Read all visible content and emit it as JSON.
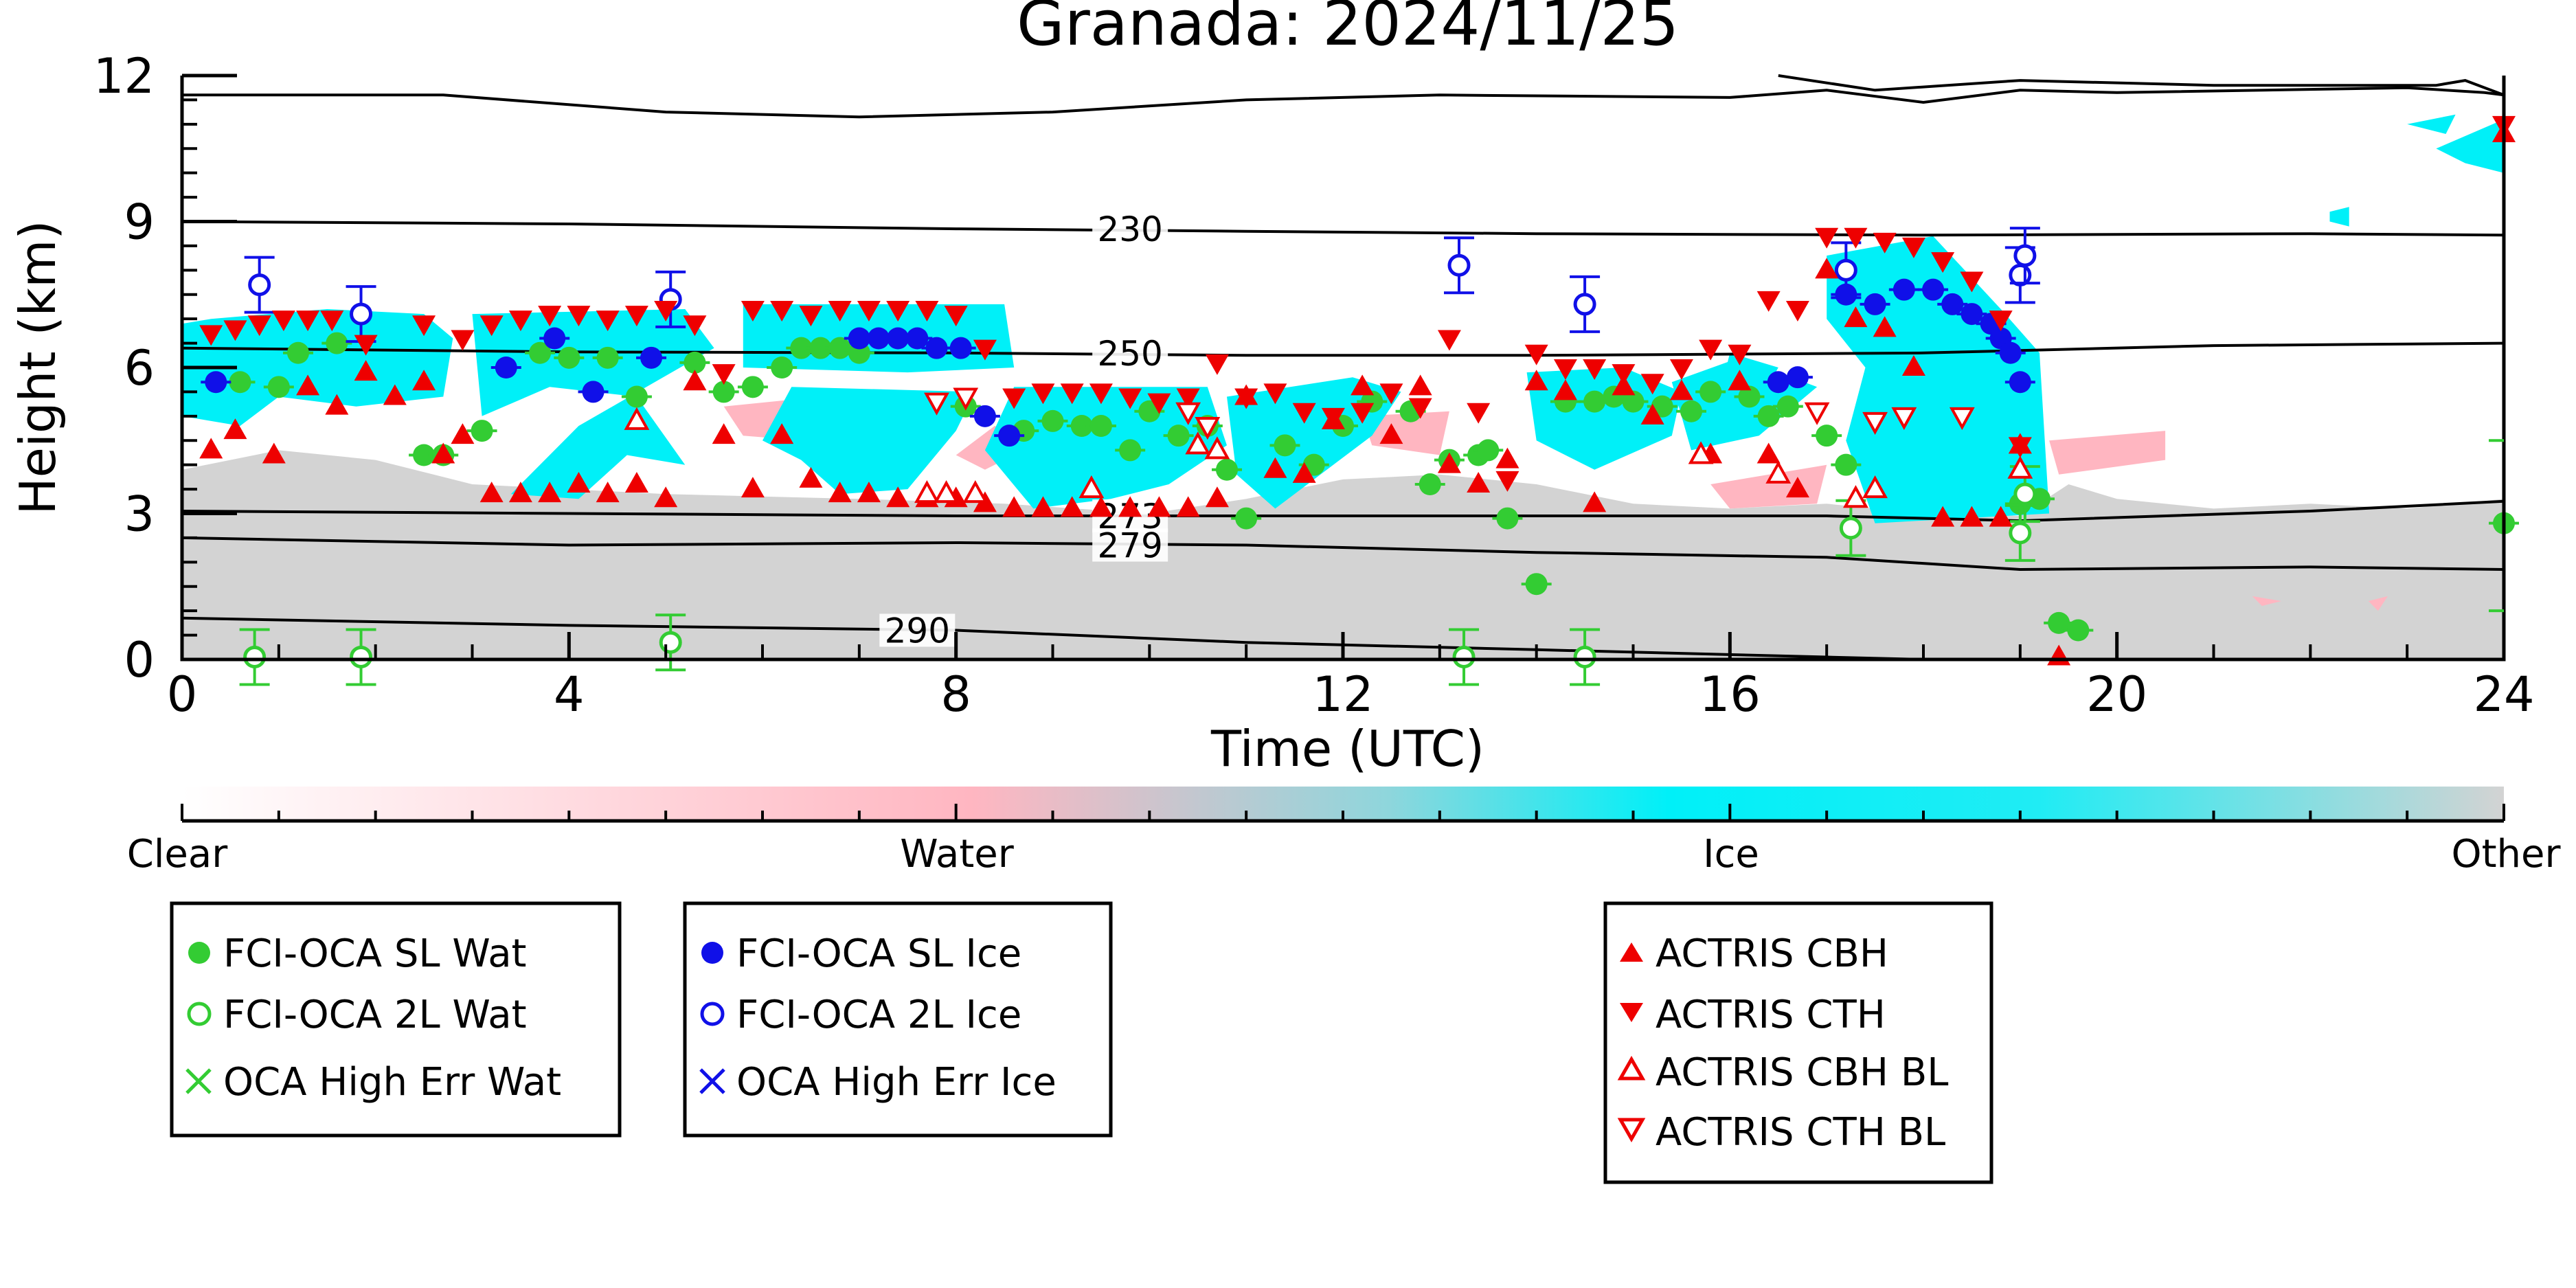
{
  "chart_data": {
    "type": "scatter",
    "title": "Granada: 2024/11/25",
    "xlabel": "Time (UTC)",
    "ylabel": "Height (km)",
    "xlim": [
      0,
      24
    ],
    "ylim": [
      0,
      12
    ],
    "x_ticks": [
      "0",
      "4",
      "8",
      "12",
      "16",
      "20",
      "24"
    ],
    "y_ticks": [
      "0",
      "3",
      "6",
      "9",
      "12"
    ],
    "grid": false,
    "colors": {
      "clear": "#ffffff",
      "water": "#ffb6c1",
      "ice": "#00f0f8",
      "other": "#d3d3d3",
      "oca_water": "#33cc33",
      "oca_ice": "#1010e8",
      "actris": "#ee0000"
    },
    "colorbar": {
      "labels": [
        "Clear",
        "Water",
        "Ice",
        "Other"
      ]
    },
    "isotherms": [
      {
        "label": "230",
        "points": [
          [
            0,
            9.0
          ],
          [
            4,
            8.95
          ],
          [
            8,
            8.85
          ],
          [
            11,
            8.8
          ],
          [
            14,
            8.75
          ],
          [
            18,
            8.72
          ],
          [
            22,
            8.75
          ],
          [
            24,
            8.72
          ]
        ]
      },
      {
        "label": "250",
        "points": [
          [
            0,
            6.4
          ],
          [
            4,
            6.32
          ],
          [
            8,
            6.3
          ],
          [
            11,
            6.25
          ],
          [
            14,
            6.25
          ],
          [
            18,
            6.3
          ],
          [
            21,
            6.45
          ],
          [
            24,
            6.5
          ]
        ]
      },
      {
        "label": "273",
        "points": [
          [
            0,
            3.05
          ],
          [
            4,
            3.0
          ],
          [
            8,
            2.95
          ],
          [
            11,
            2.95
          ],
          [
            14,
            2.95
          ],
          [
            17,
            2.95
          ],
          [
            19,
            2.85
          ],
          [
            22,
            3.05
          ],
          [
            24,
            3.25
          ]
        ]
      },
      {
        "label": "279",
        "points": [
          [
            0,
            2.5
          ],
          [
            4,
            2.35
          ],
          [
            8,
            2.4
          ],
          [
            11,
            2.35
          ],
          [
            14,
            2.2
          ],
          [
            17,
            2.1
          ],
          [
            19,
            1.85
          ],
          [
            22,
            1.9
          ],
          [
            24,
            1.85
          ]
        ]
      },
      {
        "label": "290",
        "points": [
          [
            0,
            0.85
          ],
          [
            4,
            0.7
          ],
          [
            8,
            0.6
          ],
          [
            11,
            0.35
          ],
          [
            14,
            0.2
          ],
          [
            17,
            0.05
          ],
          [
            18,
            0.0
          ]
        ]
      },
      {
        "label": "",
        "points": [
          [
            0,
            11.6
          ],
          [
            2.7,
            11.6
          ],
          [
            5,
            11.25
          ],
          [
            7,
            11.15
          ],
          [
            9,
            11.25
          ],
          [
            11,
            11.5
          ],
          [
            13,
            11.6
          ],
          [
            16,
            11.55
          ],
          [
            17,
            11.7
          ],
          [
            18,
            11.45
          ],
          [
            19,
            11.7
          ],
          [
            20,
            11.65
          ],
          [
            23,
            11.75
          ],
          [
            23.8,
            11.65
          ],
          [
            24,
            11.6
          ]
        ]
      },
      {
        "label": "",
        "points": [
          [
            16.5,
            12.0
          ],
          [
            17.5,
            11.7
          ],
          [
            19,
            11.9
          ],
          [
            21,
            11.8
          ],
          [
            23.3,
            11.8
          ],
          [
            23.6,
            11.9
          ],
          [
            24,
            11.6
          ]
        ]
      }
    ],
    "legend": {
      "water": [
        "FCI-OCA SL Wat",
        "FCI-OCA 2L Wat",
        "OCA High Err Wat"
      ],
      "ice": [
        "FCI-OCA SL Ice",
        "FCI-OCA 2L Ice",
        "OCA High Err Ice"
      ],
      "actris": [
        "ACTRIS CBH",
        "ACTRIS CTH",
        "ACTRIS CBH BL",
        "ACTRIS CTH BL"
      ]
    },
    "series": [
      {
        "name": "FCI-OCA SL Wat",
        "x": [
          0.6,
          1.0,
          1.2,
          1.6,
          2.5,
          2.7,
          3.1,
          3.7,
          4.0,
          4.4,
          4.7,
          5.3,
          5.6,
          5.9,
          6.2,
          6.4,
          6.6,
          6.8,
          7.0,
          8.1,
          8.7,
          9.0,
          9.3,
          9.5,
          9.8,
          10.0,
          10.3,
          10.6,
          10.8,
          11.0,
          11.4,
          11.7,
          12.0,
          12.3,
          12.7,
          12.9,
          13.1,
          13.4,
          13.5,
          13.7,
          14.0,
          14.3,
          14.6,
          14.8,
          15.0,
          15.3,
          15.6,
          15.8,
          16.2,
          16.4,
          16.6,
          17.0,
          17.2,
          19.0,
          19.2,
          19.4,
          19.6,
          24.0
        ],
        "y": [
          5.7,
          5.6,
          6.3,
          6.5,
          4.2,
          4.2,
          4.7,
          6.3,
          6.2,
          6.2,
          5.4,
          6.1,
          5.5,
          5.6,
          6.0,
          6.4,
          6.4,
          6.4,
          6.3,
          5.2,
          4.7,
          4.9,
          4.8,
          4.8,
          4.3,
          5.1,
          4.6,
          4.8,
          3.9,
          2.9,
          4.4,
          4.0,
          4.8,
          5.3,
          5.1,
          3.6,
          4.1,
          4.2,
          4.3,
          2.9,
          1.55,
          5.3,
          5.3,
          5.4,
          5.3,
          5.2,
          5.1,
          5.5,
          5.4,
          5.0,
          5.2,
          4.6,
          4.0,
          3.2,
          3.3,
          0.75,
          0.6,
          2.8
        ]
      },
      {
        "name": "FCI-OCA 2L Wat",
        "x": [
          0.75,
          1.85,
          5.05,
          13.25,
          14.5,
          17.25,
          19.0,
          19.05
        ],
        "y": [
          0.05,
          0.05,
          0.35,
          0.05,
          0.05,
          2.7,
          2.6,
          3.4
        ]
      },
      {
        "name": "FCI-OCA SL Ice",
        "x": [
          0.35,
          3.35,
          3.85,
          4.25,
          4.85,
          7.0,
          7.2,
          7.4,
          7.6,
          7.8,
          8.05,
          8.3,
          8.55,
          16.5,
          16.7,
          17.2,
          17.5,
          17.8,
          18.1,
          18.3,
          18.5,
          18.7,
          18.8,
          18.9,
          19.0
        ],
        "y": [
          5.7,
          6.0,
          6.6,
          5.5,
          6.2,
          6.6,
          6.6,
          6.6,
          6.6,
          6.4,
          6.4,
          5.0,
          4.6,
          5.7,
          5.8,
          7.5,
          7.3,
          7.6,
          7.6,
          7.3,
          7.1,
          6.9,
          6.6,
          6.3,
          5.7
        ]
      },
      {
        "name": "FCI-OCA 2L Ice",
        "x": [
          0.8,
          1.85,
          5.05,
          13.2,
          14.5,
          17.2,
          19.0,
          19.05
        ],
        "y": [
          7.7,
          7.1,
          7.4,
          8.1,
          7.3,
          8.0,
          7.9,
          8.3
        ]
      },
      {
        "name": "ACTRIS CBH",
        "x": [
          0.3,
          0.55,
          0.95,
          1.3,
          1.6,
          1.9,
          2.2,
          2.5,
          2.7,
          2.9,
          3.2,
          3.5,
          3.8,
          4.1,
          4.4,
          4.7,
          5.0,
          5.3,
          5.6,
          5.9,
          6.2,
          6.5,
          6.8,
          7.1,
          7.4,
          7.7,
          8.0,
          8.3,
          8.6,
          8.9,
          9.2,
          9.5,
          9.8,
          10.1,
          10.4,
          10.7,
          11.0,
          11.3,
          11.6,
          11.9,
          12.2,
          12.5,
          12.8,
          13.1,
          13.4,
          13.7,
          14.0,
          14.3,
          14.6,
          14.9,
          15.2,
          15.5,
          15.8,
          16.1,
          16.4,
          16.7,
          17.0,
          17.3,
          17.6,
          17.9,
          18.2,
          18.5,
          18.8,
          19.0,
          19.4,
          24.0
        ],
        "y": [
          4.3,
          4.7,
          4.2,
          5.6,
          5.2,
          5.9,
          5.4,
          5.7,
          4.2,
          4.6,
          3.4,
          3.4,
          3.4,
          3.6,
          3.4,
          3.6,
          3.3,
          5.7,
          4.6,
          3.5,
          4.6,
          3.7,
          3.4,
          3.4,
          3.3,
          3.3,
          3.3,
          3.2,
          3.1,
          3.1,
          3.1,
          3.1,
          3.1,
          3.1,
          3.1,
          3.3,
          5.4,
          3.9,
          3.8,
          4.9,
          5.6,
          4.6,
          5.6,
          4.0,
          3.6,
          4.1,
          5.7,
          5.5,
          3.2,
          5.6,
          5.0,
          5.5,
          4.2,
          5.7,
          4.2,
          3.5,
          8.0,
          7.0,
          6.8,
          6.0,
          2.9,
          2.9,
          2.9,
          4.4,
          0.05,
          10.8
        ]
      },
      {
        "name": "ACTRIS CTH",
        "x": [
          0.3,
          0.55,
          0.8,
          1.05,
          1.3,
          1.55,
          1.9,
          2.5,
          2.9,
          3.2,
          3.5,
          3.8,
          4.1,
          4.4,
          4.7,
          5.0,
          5.3,
          5.6,
          5.9,
          6.2,
          6.5,
          6.8,
          7.1,
          7.4,
          7.7,
          8.0,
          8.3,
          8.6,
          8.9,
          9.2,
          9.5,
          9.8,
          10.1,
          10.4,
          10.7,
          11.0,
          11.3,
          11.6,
          11.9,
          12.2,
          12.5,
          12.8,
          13.1,
          13.4,
          13.7,
          14.0,
          14.3,
          14.6,
          14.9,
          15.2,
          15.5,
          15.8,
          16.1,
          16.4,
          16.7,
          17.0,
          17.3,
          17.6,
          17.9,
          18.2,
          18.5,
          18.8,
          19.0,
          24.0
        ],
        "y": [
          6.7,
          6.8,
          6.9,
          7.0,
          7.0,
          7.0,
          6.5,
          6.9,
          6.6,
          6.9,
          7.0,
          7.1,
          7.1,
          7.0,
          7.1,
          7.2,
          6.9,
          5.9,
          7.2,
          7.2,
          7.1,
          7.2,
          7.2,
          7.2,
          7.2,
          7.1,
          6.4,
          5.4,
          5.5,
          5.5,
          5.5,
          5.4,
          5.3,
          5.4,
          6.1,
          5.4,
          5.5,
          5.1,
          5.0,
          5.1,
          5.5,
          5.2,
          6.6,
          5.1,
          3.7,
          6.3,
          6.0,
          6.0,
          5.9,
          5.7,
          6.0,
          6.4,
          6.3,
          7.4,
          7.2,
          8.7,
          8.7,
          8.6,
          8.5,
          8.2,
          7.8,
          7.0,
          4.4,
          11.0
        ]
      },
      {
        "name": "ACTRIS CBH BL",
        "x": [
          4.7,
          7.7,
          7.9,
          8.2,
          9.4,
          10.5,
          10.7,
          15.7,
          16.5,
          17.3,
          17.5,
          19.0
        ],
        "y": [
          4.9,
          3.4,
          3.4,
          3.4,
          3.5,
          4.4,
          4.3,
          4.2,
          3.8,
          3.3,
          3.5,
          3.9
        ]
      },
      {
        "name": "ACTRIS CTH BL",
        "x": [
          7.8,
          8.1,
          10.4,
          10.6,
          16.9,
          17.5,
          17.8,
          18.4
        ],
        "y": [
          5.3,
          5.4,
          5.1,
          4.8,
          5.1,
          4.9,
          5.0,
          5.0
        ]
      }
    ]
  }
}
